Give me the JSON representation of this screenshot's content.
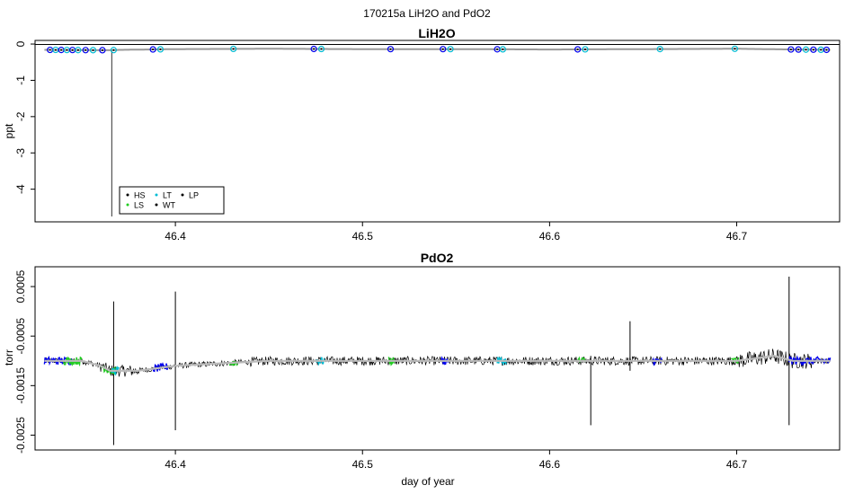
{
  "figure_title": "170215a   LiH2O and PdO2",
  "chart_data": [
    {
      "type": "line",
      "title": "LiH2O",
      "xlabel": "",
      "ylabel": "ppt",
      "xlim": [
        46.325,
        46.755
      ],
      "ylim": [
        -4.9,
        0.1
      ],
      "x_ticks": [
        46.4,
        46.5,
        46.6,
        46.7
      ],
      "x_tick_labels": [
        "46.4",
        "46.5",
        "46.6",
        "46.7"
      ],
      "y_ticks": [
        0,
        -1,
        -2,
        -3,
        -4
      ],
      "y_tick_labels": [
        "0",
        "-1",
        "-2",
        "-3",
        "-4"
      ],
      "series": [
        {
          "values_x": [
            46.33,
            46.36,
            46.365,
            46.37,
            46.4,
            46.45,
            46.5,
            46.55,
            46.6,
            46.65,
            46.7,
            46.73,
            46.75
          ],
          "values_y": [
            -0.16,
            -0.17,
            -0.17,
            -0.16,
            -0.14,
            -0.13,
            -0.14,
            -0.14,
            -0.15,
            -0.14,
            -0.13,
            -0.15,
            -0.16
          ],
          "color": "#999999"
        }
      ],
      "spike": {
        "x": 46.366,
        "y_min": -4.75
      },
      "markers": [
        {
          "x": 46.333,
          "color": "#0000ee"
        },
        {
          "x": 46.336,
          "color": "#00bcd4"
        },
        {
          "x": 46.339,
          "color": "#0000ee"
        },
        {
          "x": 46.342,
          "color": "#00bcd4"
        },
        {
          "x": 46.345,
          "color": "#0000ee"
        },
        {
          "x": 46.348,
          "color": "#00bcd4"
        },
        {
          "x": 46.352,
          "color": "#0000ee"
        },
        {
          "x": 46.356,
          "color": "#00bcd4"
        },
        {
          "x": 46.361,
          "color": "#0000ee"
        },
        {
          "x": 46.367,
          "color": "#00bcd4"
        },
        {
          "x": 46.388,
          "color": "#0000ee"
        },
        {
          "x": 46.392,
          "color": "#00bcd4"
        },
        {
          "x": 46.431,
          "color": "#00bcd4"
        },
        {
          "x": 46.474,
          "color": "#0000ee"
        },
        {
          "x": 46.478,
          "color": "#00bcd4"
        },
        {
          "x": 46.515,
          "color": "#0000ee"
        },
        {
          "x": 46.543,
          "color": "#0000ee"
        },
        {
          "x": 46.547,
          "color": "#00bcd4"
        },
        {
          "x": 46.572,
          "color": "#0000ee"
        },
        {
          "x": 46.575,
          "color": "#00bcd4"
        },
        {
          "x": 46.615,
          "color": "#0000ee"
        },
        {
          "x": 46.619,
          "color": "#00bcd4"
        },
        {
          "x": 46.659,
          "color": "#00bcd4"
        },
        {
          "x": 46.699,
          "color": "#00bcd4"
        },
        {
          "x": 46.729,
          "color": "#0000ee"
        },
        {
          "x": 46.733,
          "color": "#0000ee"
        },
        {
          "x": 46.737,
          "color": "#00bcd4"
        },
        {
          "x": 46.741,
          "color": "#0000ee"
        },
        {
          "x": 46.745,
          "color": "#00bcd4"
        },
        {
          "x": 46.748,
          "color": "#0000ee"
        }
      ],
      "legend": {
        "placement": "bottom-left",
        "entries": [
          {
            "label": "HS",
            "color": "#000000"
          },
          {
            "label": "LS",
            "color": "#22cc22"
          },
          {
            "label": "LT",
            "color": "#00bcd4"
          },
          {
            "label": "WT",
            "color": "#000000"
          },
          {
            "label": "LP",
            "color": "#000000"
          }
        ]
      }
    },
    {
      "type": "line",
      "title": "PdO2",
      "xlabel": "day of year",
      "ylabel": "torr",
      "xlim": [
        46.325,
        46.755
      ],
      "ylim": [
        -0.0028,
        0.0009
      ],
      "x_ticks": [
        46.4,
        46.5,
        46.6,
        46.7
      ],
      "x_tick_labels": [
        "46.4",
        "46.5",
        "46.6",
        "46.7"
      ],
      "y_ticks": [
        0.0005,
        -0.0005,
        -0.0015,
        -0.0025
      ],
      "y_tick_labels": [
        "0.0005",
        "-0.0005",
        "-0.0015",
        "-0.0025"
      ],
      "baseline": {
        "x": [
          46.33,
          46.35,
          46.36,
          46.365,
          46.38,
          46.4,
          46.45,
          46.5,
          46.55,
          46.6,
          46.65,
          46.7,
          46.72,
          46.73,
          46.75
        ],
        "y": [
          -0.001,
          -0.001,
          -0.0011,
          -0.0012,
          -0.0012,
          -0.0011,
          -0.001,
          -0.001,
          -0.001,
          -0.001,
          -0.001,
          -0.001,
          -0.0009,
          -0.001,
          -0.001
        ],
        "color": "#bbbbbb"
      },
      "spikes": [
        {
          "x": 46.367,
          "y_min": -0.0027,
          "y_max": 0.0002
        },
        {
          "x": 46.4,
          "y_min": -0.0024,
          "y_max": 0.0004
        },
        {
          "x": 46.622,
          "y_min": -0.0023,
          "y_max": -0.0009
        },
        {
          "x": 46.643,
          "y_min": -0.0012,
          "y_max": -0.0002
        },
        {
          "x": 46.728,
          "y_min": -0.0023,
          "y_max": 0.0007
        }
      ],
      "colored_segments": [
        {
          "x_start": 46.33,
          "x_end": 46.345,
          "color": "#0000ee"
        },
        {
          "x_start": 46.34,
          "x_end": 46.35,
          "color": "#22cc22"
        },
        {
          "x_start": 46.36,
          "x_end": 46.368,
          "color": "#22cc22"
        },
        {
          "x_start": 46.366,
          "x_end": 46.37,
          "color": "#00bcd4"
        },
        {
          "x_start": 46.388,
          "x_end": 46.396,
          "color": "#0000ee"
        },
        {
          "x_start": 46.429,
          "x_end": 46.433,
          "color": "#22cc22"
        },
        {
          "x_start": 46.475,
          "x_end": 46.48,
          "color": "#00bcd4"
        },
        {
          "x_start": 46.514,
          "x_end": 46.517,
          "color": "#22cc22"
        },
        {
          "x_start": 46.542,
          "x_end": 46.546,
          "color": "#0000ee"
        },
        {
          "x_start": 46.572,
          "x_end": 46.577,
          "color": "#00bcd4"
        },
        {
          "x_start": 46.615,
          "x_end": 46.619,
          "color": "#22cc22"
        },
        {
          "x_start": 46.655,
          "x_end": 46.66,
          "color": "#0000ee"
        },
        {
          "x_start": 46.697,
          "x_end": 46.701,
          "color": "#22cc22"
        },
        {
          "x_start": 46.728,
          "x_end": 46.742,
          "color": "#0000ee"
        },
        {
          "x_start": 46.742,
          "x_end": 46.75,
          "color": "#0000ee"
        }
      ]
    }
  ]
}
